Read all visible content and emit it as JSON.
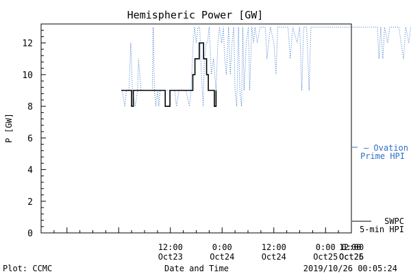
{
  "chart_data": {
    "type": "line",
    "title": "Hemispheric Power [GW]",
    "ylabel": "P [GW]",
    "xlabel": "Date and Time",
    "ylim": [
      0,
      13.2
    ],
    "y_ticks": [
      0,
      2,
      4,
      6,
      8,
      10,
      12
    ],
    "x_range_hours": [
      -18,
      54
    ],
    "x_ticks": [
      {
        "h": 12,
        "time": "12:00",
        "date": "Oct23"
      },
      {
        "h": 24,
        "time": "0:00",
        "date": "Oct24"
      },
      {
        "h": 36,
        "time": "12:00",
        "date": "Oct24"
      },
      {
        "h": 48,
        "time": "0:00",
        "date": "Oct25"
      },
      {
        "h": 60,
        "time": "12:00",
        "date": "Oct25"
      },
      {
        "h": 72,
        "time": "0:00",
        "date": "Oct26"
      }
    ],
    "series": [
      {
        "name": "SWPC 5-min HPI",
        "color": "#000000",
        "style": "solid",
        "points": [
          [
            0.6,
            9
          ],
          [
            3.0,
            9
          ],
          [
            3.0,
            8
          ],
          [
            3.4,
            8
          ],
          [
            3.4,
            9
          ],
          [
            10.8,
            9
          ],
          [
            10.8,
            8
          ],
          [
            11.9,
            8
          ],
          [
            11.9,
            9
          ],
          [
            17.2,
            9
          ],
          [
            17.2,
            10
          ],
          [
            17.7,
            10
          ],
          [
            17.7,
            11
          ],
          [
            18.7,
            11
          ],
          [
            18.7,
            12
          ],
          [
            19.7,
            12
          ],
          [
            19.7,
            11
          ],
          [
            20.4,
            11
          ],
          [
            20.4,
            10
          ],
          [
            20.8,
            10
          ],
          [
            20.8,
            9
          ],
          [
            22.2,
            9
          ],
          [
            22.2,
            8
          ],
          [
            22.6,
            8
          ],
          [
            22.6,
            9
          ]
        ]
      },
      {
        "name": "Ovation Prime HPI",
        "color": "#2f6fc9",
        "style": "dotted",
        "points": [
          [
            0.8,
            9
          ],
          [
            1.4,
            8
          ],
          [
            1.8,
            9
          ],
          [
            2.4,
            9
          ],
          [
            2.8,
            12
          ],
          [
            3.2,
            9
          ],
          [
            3.8,
            8
          ],
          [
            4.4,
            9
          ],
          [
            4.6,
            11
          ],
          [
            4.9,
            10
          ],
          [
            5.2,
            9
          ],
          [
            6.2,
            9
          ],
          [
            7.8,
            9
          ],
          [
            8.0,
            13
          ],
          [
            8.3,
            9
          ],
          [
            8.6,
            8
          ],
          [
            9.0,
            9
          ],
          [
            9.3,
            8
          ],
          [
            9.6,
            9
          ],
          [
            10.4,
            9
          ],
          [
            12.0,
            9
          ],
          [
            13.0,
            9
          ],
          [
            13.4,
            8
          ],
          [
            14.0,
            9
          ],
          [
            15.6,
            9
          ],
          [
            16.4,
            8
          ],
          [
            16.8,
            9
          ],
          [
            17.3,
            12
          ],
          [
            17.6,
            13
          ],
          [
            18.0,
            12
          ],
          [
            18.4,
            13
          ],
          [
            18.8,
            13
          ],
          [
            19.2,
            10
          ],
          [
            19.6,
            8
          ],
          [
            19.9,
            11
          ],
          [
            20.3,
            12
          ],
          [
            20.6,
            12
          ],
          [
            21.0,
            13
          ],
          [
            21.5,
            10
          ],
          [
            22.0,
            11
          ],
          [
            22.6,
            9
          ],
          [
            23.0,
            12
          ],
          [
            23.4,
            13
          ],
          [
            23.9,
            12
          ],
          [
            24.3,
            13
          ],
          [
            24.6,
            11
          ],
          [
            25.0,
            10
          ],
          [
            25.5,
            13
          ],
          [
            25.9,
            10
          ],
          [
            26.3,
            12
          ],
          [
            26.7,
            13
          ],
          [
            27.0,
            9
          ],
          [
            27.4,
            8
          ],
          [
            27.8,
            13
          ],
          [
            28.1,
            9
          ],
          [
            28.5,
            8
          ],
          [
            28.8,
            13
          ],
          [
            29.1,
            9
          ],
          [
            29.6,
            12
          ],
          [
            30.1,
            13
          ],
          [
            30.4,
            9
          ],
          [
            30.9,
            13
          ],
          [
            31.3,
            12
          ],
          [
            31.6,
            13
          ],
          [
            32.2,
            12
          ],
          [
            32.8,
            13
          ],
          [
            33.4,
            13
          ],
          [
            34.0,
            13
          ],
          [
            34.4,
            11
          ],
          [
            34.8,
            12
          ],
          [
            35.2,
            13
          ],
          [
            36.0,
            12
          ],
          [
            36.5,
            10
          ],
          [
            36.9,
            13
          ],
          [
            37.4,
            13
          ],
          [
            38.4,
            13
          ],
          [
            39.3,
            13
          ],
          [
            39.8,
            11
          ],
          [
            40.4,
            13
          ],
          [
            41.4,
            12
          ],
          [
            42.0,
            13
          ],
          [
            42.5,
            9
          ],
          [
            42.9,
            13
          ],
          [
            43.6,
            13
          ],
          [
            44.2,
            9
          ],
          [
            44.6,
            13
          ],
          [
            46.0,
            13
          ],
          [
            48.0,
            13
          ],
          [
            50.0,
            13
          ],
          [
            52.0,
            13
          ],
          [
            54.0,
            13
          ],
          [
            60.0,
            13
          ],
          [
            60.4,
            11
          ],
          [
            60.8,
            13
          ],
          [
            61.3,
            11
          ],
          [
            61.7,
            13
          ],
          [
            62.4,
            12
          ],
          [
            62.9,
            13
          ],
          [
            64.5,
            13
          ],
          [
            65.0,
            13
          ],
          [
            66.1,
            11
          ],
          [
            66.6,
            13
          ],
          [
            67.3,
            12
          ],
          [
            67.8,
            13
          ],
          [
            68.6,
            13
          ],
          [
            69.4,
            12
          ],
          [
            69.9,
            13
          ]
        ]
      }
    ],
    "legend": [
      {
        "line1": "– Ovation",
        "line2": "Prime HPI",
        "color": "#2f6fc9",
        "placement": "right-middle"
      },
      {
        "line1": "SWPC",
        "line2": "5-min HPI",
        "color": "#000000",
        "placement": "right-bottom"
      }
    ],
    "footer_left": "Plot: CCMC",
    "footer_right": "2019/10/26 00:05:24"
  }
}
